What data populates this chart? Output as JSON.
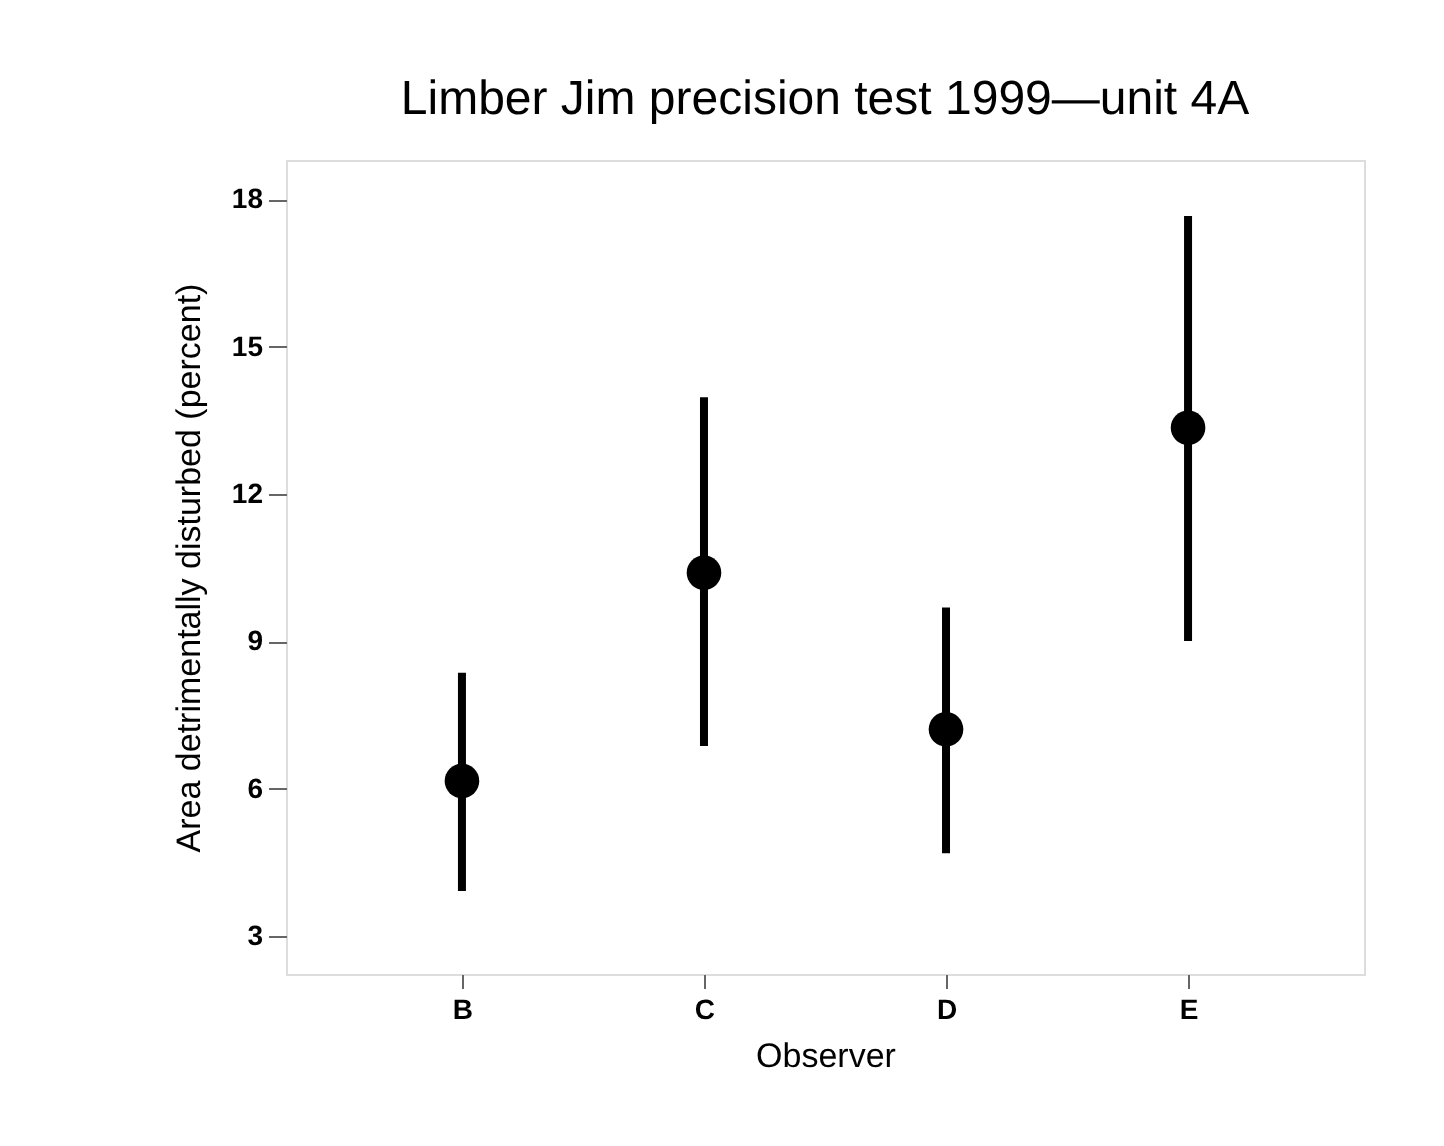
{
  "chart_data": {
    "type": "scatter",
    "title": "Limber Jim precision test 1999—unit 4A",
    "xlabel": "Observer",
    "ylabel": "Area detrimentally disturbed (percent)",
    "categories": [
      "B",
      "C",
      "D",
      "E"
    ],
    "series": [
      {
        "color": "#000000",
        "values": [
          6.16,
          10.4,
          7.21,
          13.35
        ],
        "errors": [
          [
            3.92,
            8.36
          ],
          [
            6.87,
            13.97
          ],
          [
            4.69,
            9.69
          ],
          [
            9.01,
            17.66
          ]
        ]
      }
    ],
    "ylim": [
      2.23,
      18.8
    ],
    "yticks": [
      3,
      6,
      9,
      12,
      15,
      18
    ],
    "grid": false,
    "marker": "circle"
  }
}
